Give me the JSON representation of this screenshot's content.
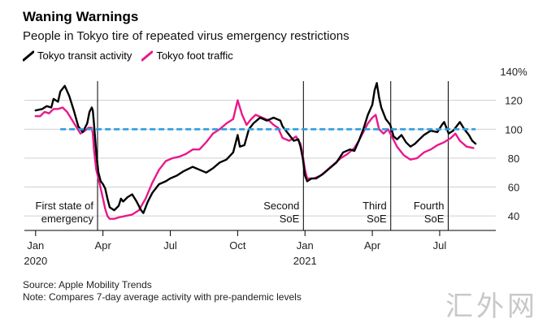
{
  "header": {
    "title": "Waning Warnings",
    "subtitle": "People in Tokyo tire of repeated virus emergency restrictions"
  },
  "footer": {
    "source": "Source: Apple Mobility Trends",
    "note": "Note: Compares 7-day average activity with pre-pandemic levels",
    "watermark": "汇外网"
  },
  "colors": {
    "transit": "#000000",
    "foot": "#e8198b",
    "baseline": "#2e9fe0",
    "grid": "#cfcfcf"
  },
  "chart_data": {
    "type": "line",
    "title": "Waning Warnings",
    "xlabel": "",
    "ylabel": "",
    "ylim": [
      30,
      140
    ],
    "yticks": [
      {
        "value": 140,
        "label": "140%"
      },
      {
        "value": 120,
        "label": "120"
      },
      {
        "value": 100,
        "label": "100"
      },
      {
        "value": 80,
        "label": "80"
      },
      {
        "value": 60,
        "label": "60"
      },
      {
        "value": 40,
        "label": "40"
      }
    ],
    "xticks": [
      {
        "x": 0,
        "label": "Jan",
        "year": "2020"
      },
      {
        "x": 3,
        "label": "Apr"
      },
      {
        "x": 6,
        "label": "Jul"
      },
      {
        "x": 9,
        "label": "Oct"
      },
      {
        "x": 12,
        "label": "Jan",
        "year": "2021"
      },
      {
        "x": 15,
        "label": "Apr"
      },
      {
        "x": 18,
        "label": "Jul"
      }
    ],
    "xlim": [
      -0.5,
      20.5
    ],
    "baseline": 100,
    "events": [
      {
        "x": 2.76,
        "lines": [
          "First state of",
          "emergency"
        ],
        "side": "left"
      },
      {
        "x": 11.93,
        "lines": [
          "Second",
          "SoE"
        ],
        "side": "left"
      },
      {
        "x": 15.82,
        "lines": [
          "Third",
          "SoE"
        ],
        "side": "left"
      },
      {
        "x": 18.38,
        "lines": [
          "Fourth",
          "SoE"
        ],
        "side": "left"
      }
    ],
    "series": [
      {
        "name": "Tokyo transit activity",
        "key": "transit",
        "points": [
          [
            0.0,
            113
          ],
          [
            0.3,
            114
          ],
          [
            0.5,
            116
          ],
          [
            0.7,
            115
          ],
          [
            0.8,
            121
          ],
          [
            1.0,
            119
          ],
          [
            1.1,
            126
          ],
          [
            1.3,
            130
          ],
          [
            1.5,
            123
          ],
          [
            1.7,
            113
          ],
          [
            1.9,
            102
          ],
          [
            2.1,
            98
          ],
          [
            2.3,
            104
          ],
          [
            2.4,
            112
          ],
          [
            2.5,
            115
          ],
          [
            2.55,
            113
          ],
          [
            2.6,
            104
          ],
          [
            2.7,
            84
          ],
          [
            2.8,
            70
          ],
          [
            2.9,
            64
          ],
          [
            3.0,
            62
          ],
          [
            3.1,
            59
          ],
          [
            3.2,
            52
          ],
          [
            3.3,
            46
          ],
          [
            3.5,
            44
          ],
          [
            3.7,
            47
          ],
          [
            3.8,
            52
          ],
          [
            3.9,
            50
          ],
          [
            4.1,
            53
          ],
          [
            4.3,
            55
          ],
          [
            4.5,
            50
          ],
          [
            4.7,
            44
          ],
          [
            4.8,
            42
          ],
          [
            5.0,
            50
          ],
          [
            5.2,
            56
          ],
          [
            5.5,
            62
          ],
          [
            5.8,
            64
          ],
          [
            6.0,
            66
          ],
          [
            6.3,
            68
          ],
          [
            6.6,
            71
          ],
          [
            7.0,
            74
          ],
          [
            7.3,
            72
          ],
          [
            7.6,
            70
          ],
          [
            7.9,
            73
          ],
          [
            8.2,
            77
          ],
          [
            8.5,
            79
          ],
          [
            8.8,
            84
          ],
          [
            9.0,
            96
          ],
          [
            9.1,
            88
          ],
          [
            9.3,
            89
          ],
          [
            9.5,
            100
          ],
          [
            9.7,
            104
          ],
          [
            10.0,
            108
          ],
          [
            10.3,
            106
          ],
          [
            10.6,
            108
          ],
          [
            10.9,
            106
          ],
          [
            11.0,
            102
          ],
          [
            11.3,
            96
          ],
          [
            11.5,
            92
          ],
          [
            11.7,
            93
          ],
          [
            11.8,
            88
          ],
          [
            11.9,
            80
          ],
          [
            12.0,
            68
          ],
          [
            12.1,
            64
          ],
          [
            12.3,
            66
          ],
          [
            12.5,
            66
          ],
          [
            12.8,
            69
          ],
          [
            13.1,
            73
          ],
          [
            13.4,
            77
          ],
          [
            13.7,
            84
          ],
          [
            14.0,
            86
          ],
          [
            14.2,
            85
          ],
          [
            14.4,
            92
          ],
          [
            14.6,
            100
          ],
          [
            14.8,
            110
          ],
          [
            15.0,
            117
          ],
          [
            15.1,
            127
          ],
          [
            15.2,
            132
          ],
          [
            15.3,
            122
          ],
          [
            15.4,
            115
          ],
          [
            15.5,
            111
          ],
          [
            15.6,
            107
          ],
          [
            15.8,
            103
          ],
          [
            15.95,
            95
          ],
          [
            16.1,
            93
          ],
          [
            16.3,
            96
          ],
          [
            16.5,
            91
          ],
          [
            16.7,
            88
          ],
          [
            16.9,
            90
          ],
          [
            17.1,
            93
          ],
          [
            17.3,
            96
          ],
          [
            17.6,
            99
          ],
          [
            17.9,
            98
          ],
          [
            18.1,
            103
          ],
          [
            18.2,
            105
          ],
          [
            18.4,
            97
          ],
          [
            18.6,
            99
          ],
          [
            18.9,
            105
          ],
          [
            19.1,
            100
          ],
          [
            19.3,
            96
          ],
          [
            19.45,
            92
          ],
          [
            19.6,
            90
          ]
        ]
      },
      {
        "name": "Tokyo foot traffic",
        "key": "foot",
        "points": [
          [
            0.0,
            109
          ],
          [
            0.2,
            109
          ],
          [
            0.4,
            112
          ],
          [
            0.6,
            111
          ],
          [
            0.8,
            114
          ],
          [
            1.0,
            114
          ],
          [
            1.2,
            115
          ],
          [
            1.4,
            112
          ],
          [
            1.6,
            107
          ],
          [
            1.8,
            102
          ],
          [
            2.0,
            97
          ],
          [
            2.2,
            99
          ],
          [
            2.35,
            101
          ],
          [
            2.5,
            101
          ],
          [
            2.55,
            97
          ],
          [
            2.6,
            86
          ],
          [
            2.7,
            72
          ],
          [
            2.8,
            66
          ],
          [
            2.9,
            59
          ],
          [
            3.0,
            52
          ],
          [
            3.1,
            45
          ],
          [
            3.2,
            40
          ],
          [
            3.3,
            38
          ],
          [
            3.5,
            38
          ],
          [
            3.7,
            39
          ],
          [
            4.0,
            40
          ],
          [
            4.3,
            41
          ],
          [
            4.6,
            44
          ],
          [
            4.9,
            52
          ],
          [
            5.2,
            63
          ],
          [
            5.5,
            72
          ],
          [
            5.8,
            78
          ],
          [
            6.1,
            80
          ],
          [
            6.4,
            81
          ],
          [
            6.7,
            83
          ],
          [
            7.0,
            86
          ],
          [
            7.3,
            86
          ],
          [
            7.6,
            91
          ],
          [
            7.9,
            97
          ],
          [
            8.2,
            100
          ],
          [
            8.5,
            104
          ],
          [
            8.8,
            107
          ],
          [
            9.0,
            120
          ],
          [
            9.2,
            110
          ],
          [
            9.4,
            103
          ],
          [
            9.6,
            107
          ],
          [
            9.8,
            110
          ],
          [
            10.1,
            108
          ],
          [
            10.4,
            106
          ],
          [
            10.6,
            103
          ],
          [
            10.8,
            101
          ],
          [
            11.0,
            94
          ],
          [
            11.3,
            92
          ],
          [
            11.6,
            95
          ],
          [
            11.8,
            90
          ],
          [
            11.9,
            82
          ],
          [
            12.0,
            72
          ],
          [
            12.1,
            66
          ],
          [
            12.4,
            66
          ],
          [
            12.7,
            68
          ],
          [
            13.0,
            72
          ],
          [
            13.3,
            76
          ],
          [
            13.6,
            80
          ],
          [
            13.9,
            83
          ],
          [
            14.2,
            87
          ],
          [
            14.4,
            92
          ],
          [
            14.6,
            98
          ],
          [
            14.8,
            104
          ],
          [
            15.0,
            108
          ],
          [
            15.15,
            110
          ],
          [
            15.3,
            100
          ],
          [
            15.5,
            97
          ],
          [
            15.7,
            100
          ],
          [
            15.9,
            94
          ],
          [
            16.1,
            88
          ],
          [
            16.4,
            82
          ],
          [
            16.7,
            79
          ],
          [
            17.0,
            80
          ],
          [
            17.3,
            84
          ],
          [
            17.6,
            86
          ],
          [
            17.9,
            89
          ],
          [
            18.2,
            91
          ],
          [
            18.5,
            94
          ],
          [
            18.7,
            97
          ],
          [
            18.9,
            92
          ],
          [
            19.2,
            88
          ],
          [
            19.5,
            87
          ]
        ]
      }
    ],
    "legend": "top-left"
  }
}
